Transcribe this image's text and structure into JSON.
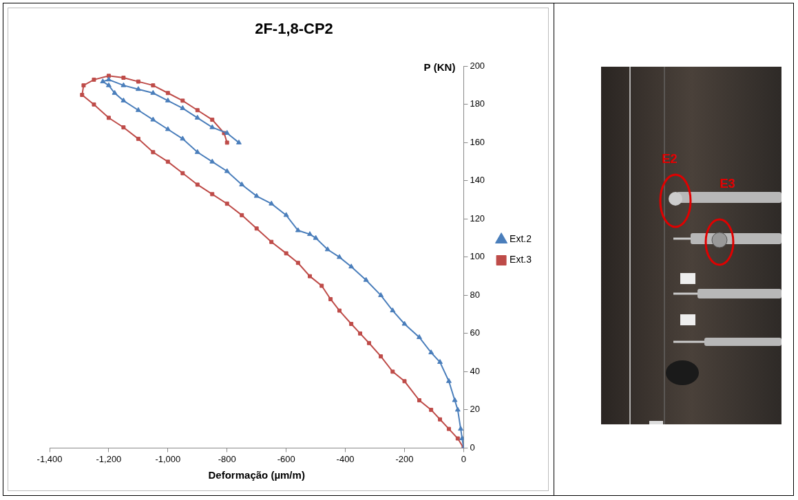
{
  "chart_data": {
    "type": "line",
    "title": "2F-1,8-CP2",
    "x_label": "Deformação (µm/m)",
    "y_label": "P (KN)",
    "xlim": [
      -1400,
      0
    ],
    "xticks": [
      -1400,
      -1200,
      -1000,
      -800,
      -600,
      -400,
      -200,
      0
    ],
    "ylim": [
      0,
      200
    ],
    "yticks": [
      0,
      20,
      40,
      60,
      80,
      100,
      120,
      140,
      160,
      180,
      200
    ],
    "grid": false,
    "legend": "right",
    "series": [
      {
        "name": "Ext.2",
        "color": "#4a7ebb",
        "marker": "triangle",
        "line_style": "solid",
        "x": [
          0,
          -5,
          -10,
          -20,
          -30,
          -50,
          -80,
          -110,
          -150,
          -200,
          -240,
          -280,
          -330,
          -380,
          -420,
          -460,
          -500,
          -520,
          -560,
          -600,
          -650,
          -700,
          -750,
          -800,
          -850,
          -900,
          -950,
          -1000,
          -1050,
          -1100,
          -1150,
          -1180,
          -1200,
          -1220,
          -1200,
          -1150,
          -1100,
          -1050,
          -1000,
          -950,
          -900,
          -850,
          -800,
          -760
        ],
        "values": [
          0,
          5,
          10,
          20,
          25,
          35,
          45,
          50,
          58,
          65,
          72,
          80,
          88,
          95,
          100,
          104,
          110,
          112,
          114,
          122,
          128,
          132,
          138,
          145,
          150,
          155,
          162,
          167,
          172,
          177,
          182,
          186,
          190,
          192,
          193,
          190,
          188,
          186,
          182,
          178,
          173,
          168,
          165,
          160
        ]
      },
      {
        "name": "Ext.3",
        "color": "#be4b48",
        "marker": "square",
        "line_style": "solid",
        "x": [
          0,
          -20,
          -50,
          -80,
          -110,
          -150,
          -200,
          -240,
          -280,
          -320,
          -350,
          -380,
          -420,
          -450,
          -480,
          -520,
          -560,
          -600,
          -650,
          -700,
          -750,
          -800,
          -850,
          -900,
          -950,
          -1000,
          -1050,
          -1100,
          -1150,
          -1200,
          -1250,
          -1290,
          -1285,
          -1250,
          -1200,
          -1150,
          -1100,
          -1050,
          -1000,
          -950,
          -900,
          -850,
          -810,
          -800
        ],
        "values": [
          0,
          5,
          10,
          15,
          20,
          25,
          35,
          40,
          48,
          55,
          60,
          65,
          72,
          78,
          85,
          90,
          97,
          102,
          108,
          115,
          122,
          128,
          133,
          138,
          144,
          150,
          155,
          162,
          168,
          173,
          180,
          185,
          190,
          193,
          195,
          194,
          192,
          190,
          186,
          182,
          177,
          172,
          165,
          160
        ]
      }
    ]
  },
  "photo": {
    "labels": [
      "E2",
      "E3"
    ]
  }
}
